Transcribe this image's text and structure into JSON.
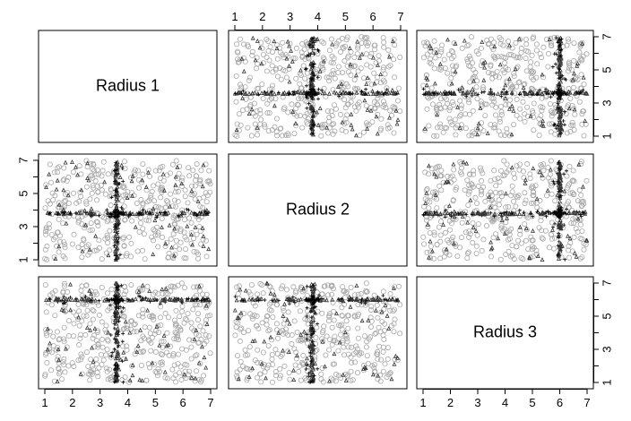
{
  "chart_data": {
    "type": "scatter",
    "title": "",
    "variables": [
      "Radius 1",
      "Radius 2",
      "Radius 3"
    ],
    "axis_range": [
      1,
      7
    ],
    "ticks": [
      1,
      2,
      3,
      4,
      5,
      6,
      7
    ],
    "grid": false,
    "centers": {
      "Radius 1": 3.6,
      "Radius 2": 3.8,
      "Radius 3": 6.0
    },
    "groups": [
      {
        "symbol": "circle",
        "color": "#a8a8a8",
        "description": "background points"
      },
      {
        "symbol": "triangle",
        "color": "#333333",
        "description": "points near variable center"
      },
      {
        "symbol": "plus",
        "color": "#000000",
        "description": "points at variable center"
      }
    ]
  }
}
